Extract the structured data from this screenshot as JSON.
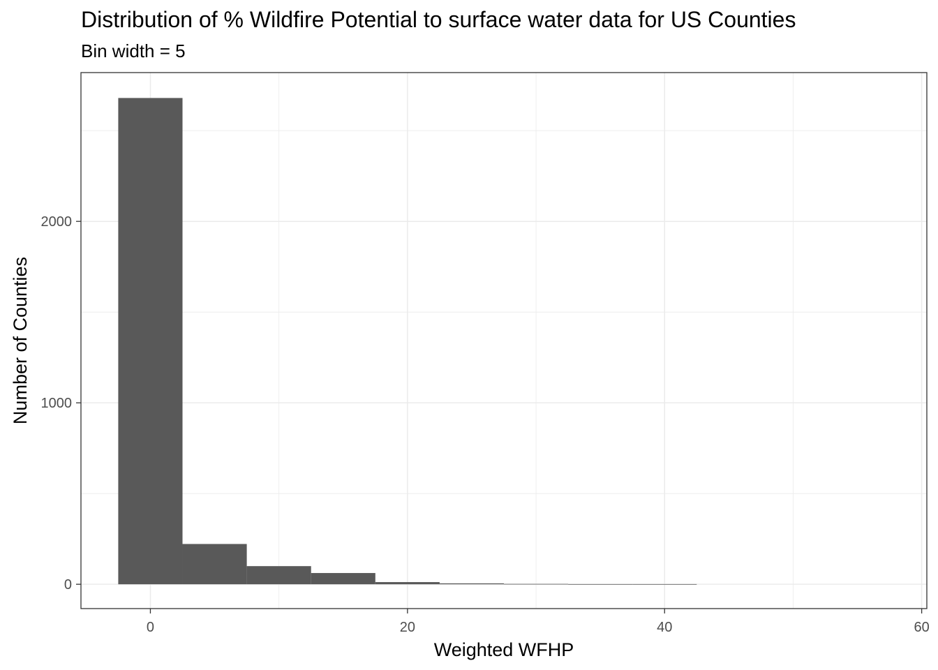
{
  "chart_data": {
    "type": "bar",
    "title": "Distribution of % Wildfire Potential to surface water data for US Counties",
    "subtitle": "Bin width = 5",
    "xlabel": "Weighted WFHP",
    "ylabel": "Number of Counties",
    "bin_width": 5,
    "bins": [
      {
        "start": -2.5,
        "end": 2.5,
        "count": 2680
      },
      {
        "start": 2.5,
        "end": 7.5,
        "count": 222
      },
      {
        "start": 7.5,
        "end": 12.5,
        "count": 100
      },
      {
        "start": 12.5,
        "end": 17.5,
        "count": 62
      },
      {
        "start": 17.5,
        "end": 22.5,
        "count": 12
      },
      {
        "start": 22.5,
        "end": 27.5,
        "count": 5
      },
      {
        "start": 27.5,
        "end": 32.5,
        "count": 2
      },
      {
        "start": 32.5,
        "end": 37.5,
        "count": 1
      },
      {
        "start": 37.5,
        "end": 42.5,
        "count": 1
      }
    ],
    "xlim": [
      -5.4,
      60.4
    ],
    "ylim": [
      -134,
      2820
    ],
    "x_ticks": [
      0,
      20,
      40,
      60
    ],
    "y_ticks": [
      0,
      1000,
      2000
    ],
    "x_minor": [
      10,
      30,
      50
    ],
    "y_minor": [
      500,
      1500,
      2500
    ],
    "grid": true,
    "bar_color": "#595959",
    "grid_color": "#ebebeb",
    "panel_border_color": "#333333"
  }
}
